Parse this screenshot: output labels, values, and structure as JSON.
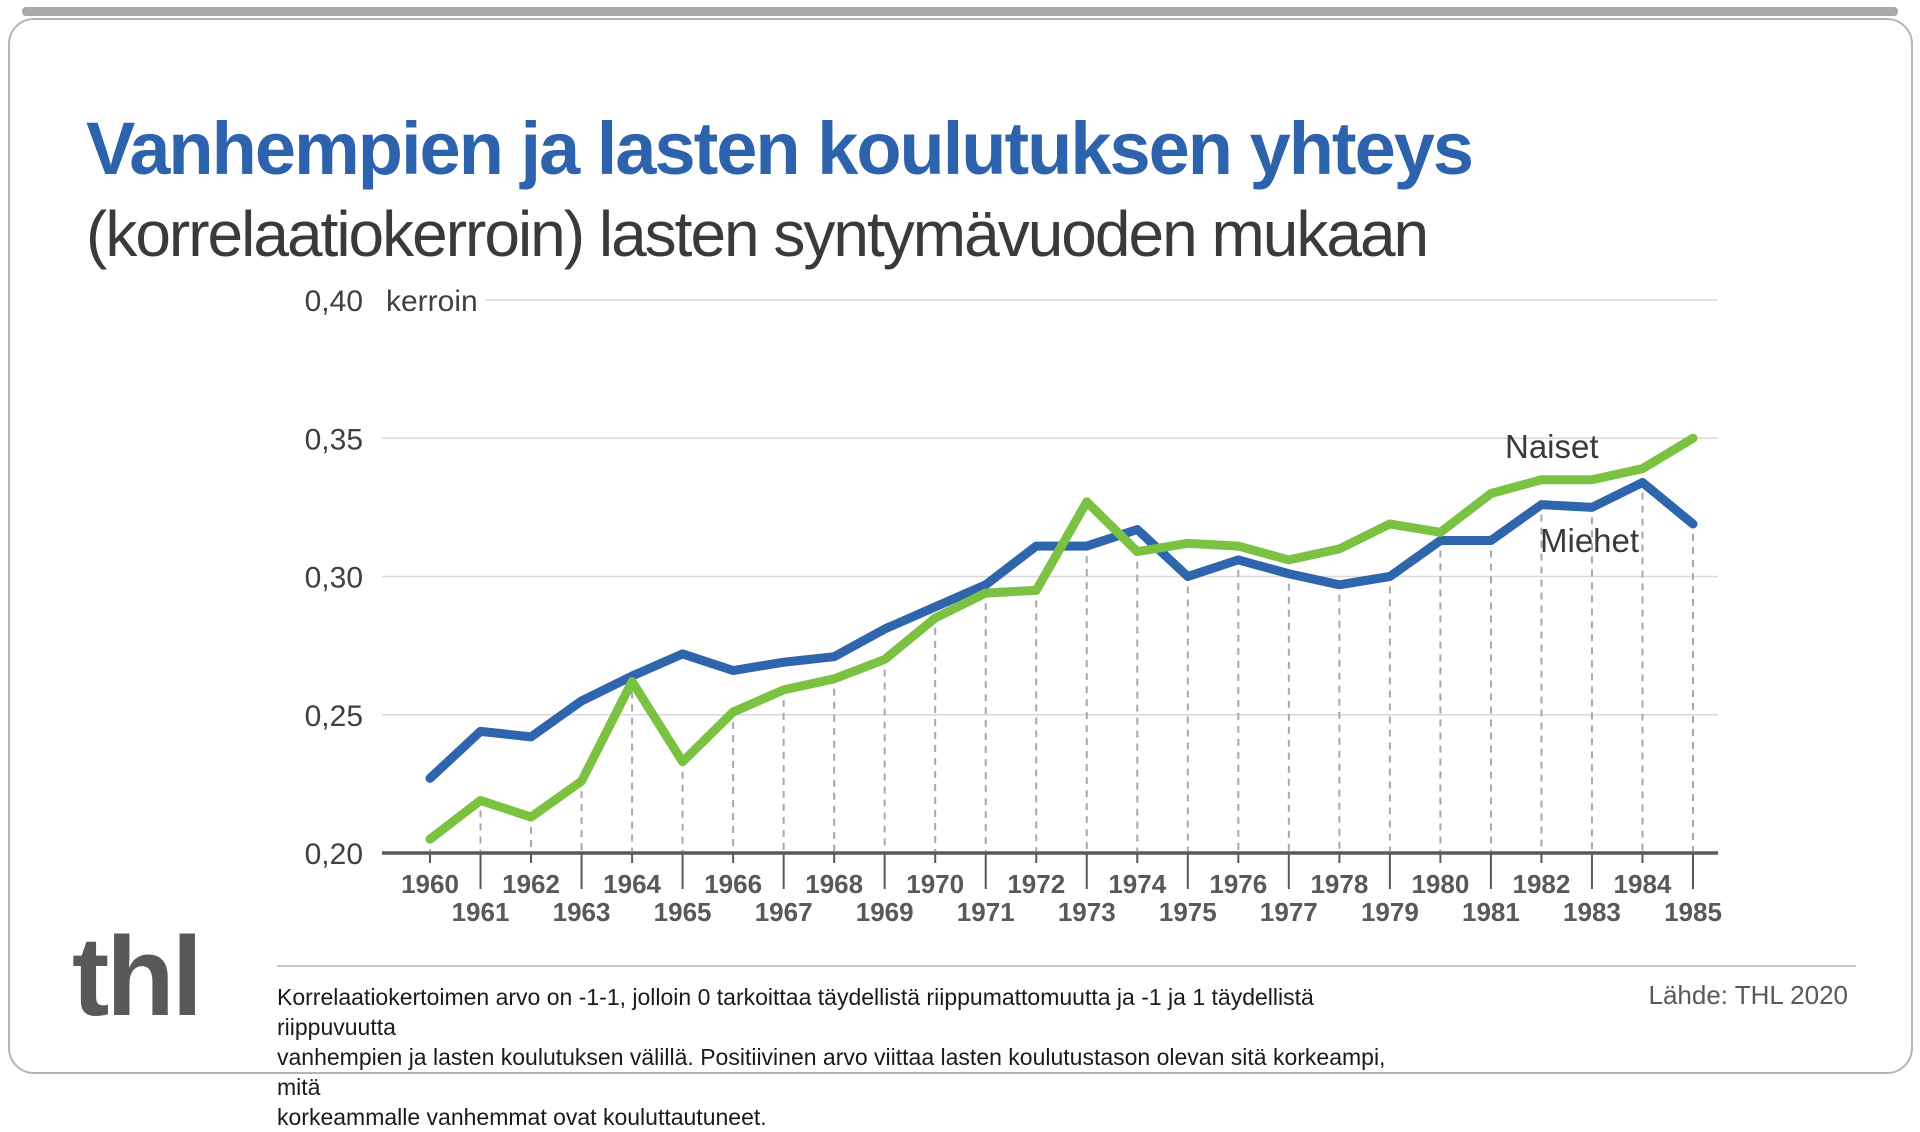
{
  "header": {
    "title": "Vanhempien ja lasten koulutuksen yhteys",
    "subtitle": "(korrelaatiokerroin) lasten syntymävuoden mukaan"
  },
  "chart_data": {
    "type": "line",
    "title": "Vanhempien ja lasten koulutuksen yhteys (korrelaatiokerroin) lasten syntymävuoden mukaan",
    "xlabel": "",
    "ylabel": "kerroin",
    "x": [
      1960,
      1961,
      1962,
      1963,
      1964,
      1965,
      1966,
      1967,
      1968,
      1969,
      1970,
      1971,
      1972,
      1973,
      1974,
      1975,
      1976,
      1977,
      1978,
      1979,
      1980,
      1981,
      1982,
      1983,
      1984,
      1985
    ],
    "series": [
      {
        "name": "Miehet",
        "color": "#2f65ad",
        "values": [
          0.227,
          0.244,
          0.242,
          0.255,
          0.264,
          0.272,
          0.266,
          0.269,
          0.271,
          0.281,
          0.289,
          0.297,
          0.311,
          0.311,
          0.317,
          0.3,
          0.306,
          0.301,
          0.297,
          0.3,
          0.313,
          0.313,
          0.326,
          0.325,
          0.334,
          0.319
        ]
      },
      {
        "name": "Naiset",
        "color": "#7cc242",
        "values": [
          0.205,
          0.219,
          0.213,
          0.226,
          0.262,
          0.233,
          0.251,
          0.259,
          0.263,
          0.27,
          0.285,
          0.294,
          0.295,
          0.327,
          0.309,
          0.312,
          0.311,
          0.306,
          0.31,
          0.319,
          0.316,
          0.33,
          0.335,
          0.335,
          0.339,
          0.35
        ]
      }
    ],
    "ylim": [
      0.2,
      0.4
    ],
    "yticks": [
      0.4,
      0.35,
      0.3,
      0.25,
      0.2
    ],
    "ytick_labels": [
      "0,40",
      "0,35",
      "0,30",
      "0,25",
      "0,20"
    ],
    "grid": true,
    "legend_position": "end-of-line labels, right side of plot"
  },
  "footer": {
    "logo": "thl",
    "notes": [
      "Korrelaatiokertoimen arvo on -1-1, jolloin 0 tarkoittaa täydellistä riippumattomuutta ja -1 ja 1 täydellistä riippuvuutta",
      "vanhempien ja lasten koulutuksen välillä. Positiivinen arvo viittaa lasten koulutustason olevan sitä korkeampi, mitä",
      "korkeammalle vanhemmat ovat kouluttautuneet."
    ],
    "source": "Lähde: THL 2020"
  },
  "colors": {
    "title": "#2d63ad",
    "subtitle": "#3a3a3a",
    "miehet_line": "#2f65ad",
    "naiset_line": "#7cc242",
    "axis": "#595959",
    "gridline": "#d9d9d9",
    "drop_line": "#a8a8a8",
    "year_label": "#595959",
    "ytick_label": "#404040",
    "card_border": "#b5b5b5",
    "top_bar": "#a9a9a9"
  }
}
